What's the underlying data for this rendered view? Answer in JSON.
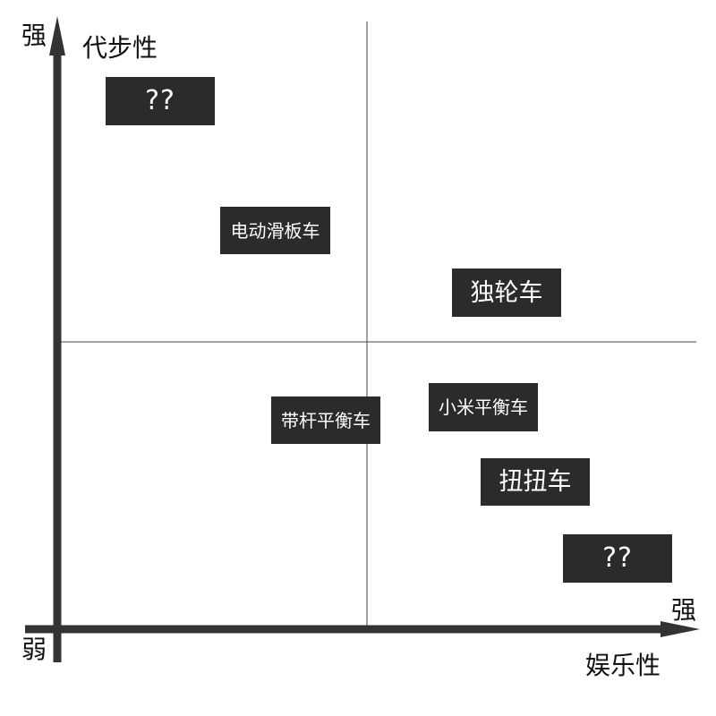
{
  "diagram": {
    "y_axis": {
      "label": "代步性",
      "high_label": "强"
    },
    "x_axis": {
      "label": "娱乐性",
      "high_label": "强"
    },
    "origin_label": "弱",
    "items": [
      {
        "id": "unknown-1",
        "label": "??"
      },
      {
        "id": "electric-scooter",
        "label": "电动滑板车"
      },
      {
        "id": "unicycle",
        "label": "独轮车"
      },
      {
        "id": "pole-balance-car",
        "label": "带杆平衡车"
      },
      {
        "id": "xiaomi-balance-car",
        "label": "小米平衡车"
      },
      {
        "id": "twist-car",
        "label": "扭扭车"
      },
      {
        "id": "unknown-2",
        "label": "??"
      }
    ]
  }
}
